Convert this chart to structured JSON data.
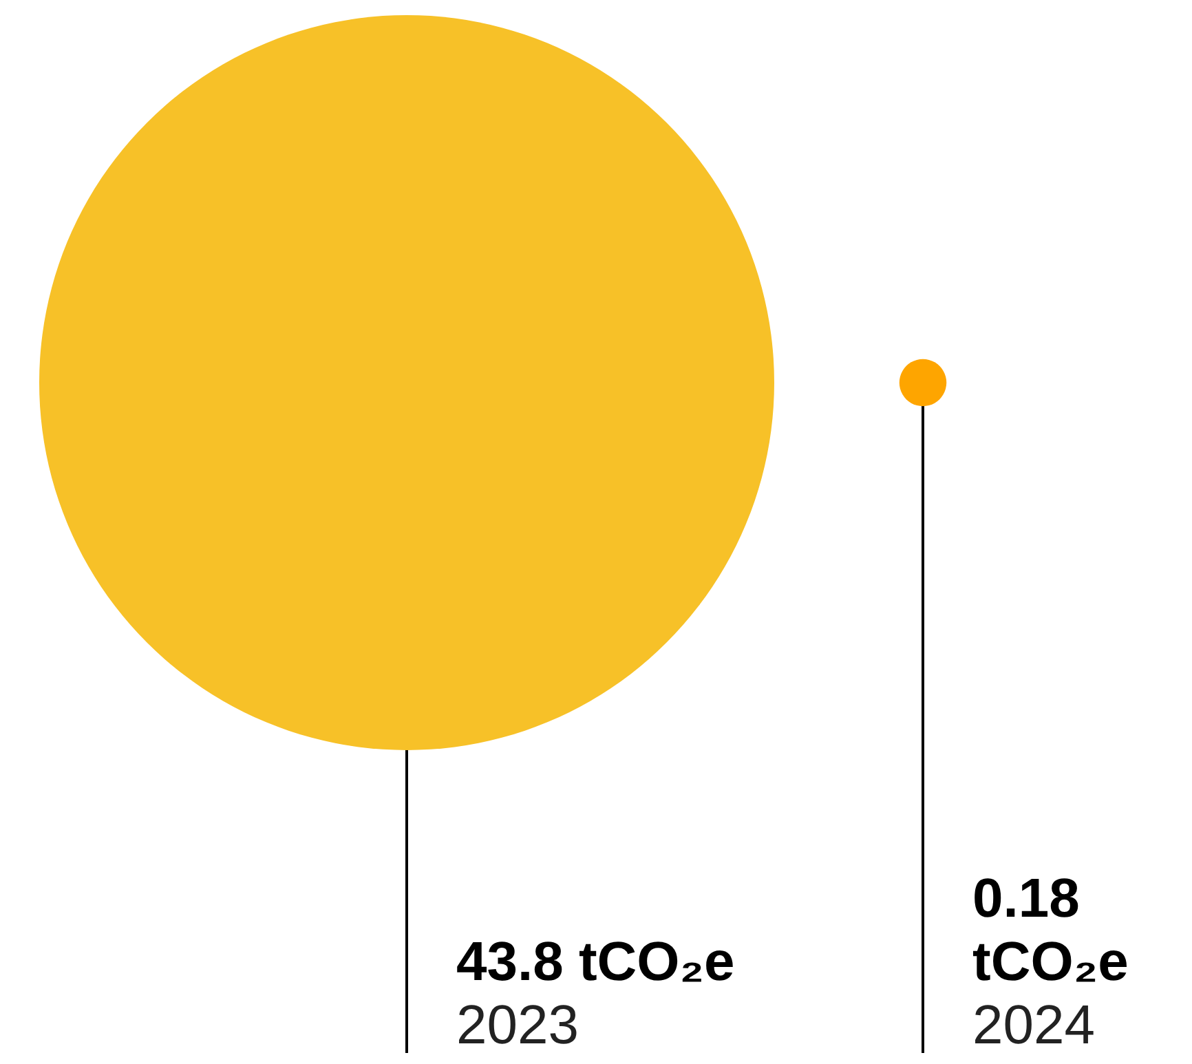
{
  "chart_data": {
    "type": "other",
    "categories": [
      "2023",
      "2024"
    ],
    "values": [
      43.8,
      0.18
    ],
    "value_labels": [
      "43.8 tCO₂e",
      "0.18 tCO₂e"
    ],
    "colors": [
      "#f7c128",
      "#fea500"
    ]
  }
}
